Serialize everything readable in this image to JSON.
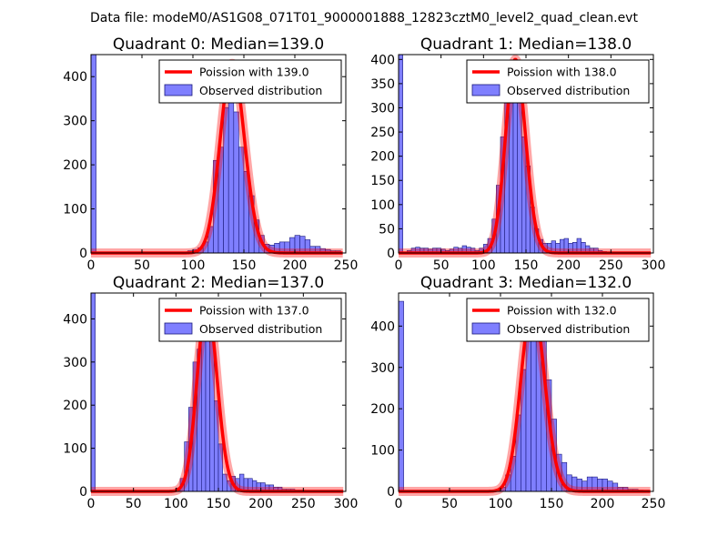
{
  "suptitle": "Data file: modeM0/AS1G08_071T01_9000001888_12823cztM0_level2_quad_clean.evt",
  "colors": {
    "bar_fill": "#7f7fff",
    "line": "#ff0000"
  },
  "chart_data": [
    {
      "type": "bar",
      "title": "Quadrant 0: Median=139.0",
      "xlim": [
        0,
        250
      ],
      "ylim": [
        0,
        450
      ],
      "xticks": [
        0,
        50,
        100,
        150,
        200,
        250
      ],
      "yticks": [
        0,
        100,
        200,
        300,
        400
      ],
      "legend": {
        "placement": "top-right",
        "line_label": "Poission with 139.0",
        "bar_label": "Observed distribution"
      },
      "poisson_mean": 139.0,
      "peak": 430,
      "bin_width": 5,
      "bins_left": [
        0,
        5,
        10,
        15,
        20,
        25,
        30,
        35,
        40,
        45,
        50,
        55,
        60,
        65,
        70,
        75,
        80,
        85,
        90,
        95,
        100,
        105,
        110,
        115,
        120,
        125,
        130,
        135,
        140,
        145,
        150,
        155,
        160,
        165,
        170,
        175,
        180,
        185,
        190,
        195,
        200,
        205,
        210,
        215,
        220,
        225,
        230,
        235,
        240
      ],
      "counts": [
        450,
        0,
        0,
        0,
        0,
        0,
        0,
        0,
        0,
        0,
        0,
        0,
        0,
        0,
        0,
        0,
        0,
        0,
        0,
        5,
        8,
        12,
        25,
        60,
        210,
        240,
        330,
        350,
        320,
        240,
        185,
        130,
        75,
        40,
        20,
        18,
        22,
        25,
        25,
        35,
        40,
        38,
        30,
        15,
        15,
        10,
        8,
        5,
        5
      ]
    },
    {
      "type": "bar",
      "title": "Quadrant 1: Median=138.0",
      "xlim": [
        0,
        300
      ],
      "ylim": [
        0,
        410
      ],
      "xticks": [
        0,
        50,
        100,
        150,
        200,
        250,
        300
      ],
      "yticks": [
        0,
        50,
        100,
        150,
        200,
        250,
        300,
        350,
        400
      ],
      "legend": {
        "placement": "top-right",
        "line_label": "Poission with 138.0",
        "bar_label": "Observed distribution"
      },
      "poisson_mean": 138.0,
      "peak": 400,
      "bin_width": 5,
      "bins_left": [
        0,
        5,
        10,
        15,
        20,
        25,
        30,
        35,
        40,
        45,
        50,
        55,
        60,
        65,
        70,
        75,
        80,
        85,
        90,
        95,
        100,
        105,
        110,
        115,
        120,
        125,
        130,
        135,
        140,
        145,
        150,
        155,
        160,
        165,
        170,
        175,
        180,
        185,
        190,
        195,
        200,
        205,
        210,
        215,
        220,
        225,
        230,
        235,
        240,
        245
      ],
      "counts": [
        410,
        0,
        5,
        10,
        12,
        10,
        10,
        8,
        10,
        10,
        8,
        5,
        8,
        12,
        10,
        15,
        12,
        10,
        5,
        10,
        18,
        30,
        70,
        140,
        240,
        320,
        380,
        370,
        310,
        240,
        180,
        95,
        50,
        28,
        20,
        20,
        25,
        20,
        28,
        30,
        20,
        22,
        30,
        22,
        15,
        10,
        10,
        5,
        3,
        2
      ]
    },
    {
      "type": "bar",
      "title": "Quadrant 2: Median=137.0",
      "xlim": [
        0,
        300
      ],
      "ylim": [
        0,
        460
      ],
      "xticks": [
        0,
        50,
        100,
        150,
        200,
        250,
        300
      ],
      "yticks": [
        0,
        100,
        200,
        300,
        400
      ],
      "legend": {
        "placement": "top-right",
        "line_label": "Poission with 137.0",
        "bar_label": "Observed distribution"
      },
      "poisson_mean": 137.0,
      "peak": 435,
      "bin_width": 5,
      "bins_left": [
        0,
        5,
        10,
        15,
        20,
        25,
        30,
        35,
        40,
        45,
        50,
        55,
        60,
        65,
        70,
        75,
        80,
        85,
        90,
        95,
        100,
        105,
        110,
        115,
        120,
        125,
        130,
        135,
        140,
        145,
        150,
        155,
        160,
        165,
        170,
        175,
        180,
        185,
        190,
        195,
        200,
        205,
        210,
        215,
        220,
        225,
        230,
        235,
        240,
        245,
        250
      ],
      "counts": [
        460,
        0,
        0,
        0,
        0,
        0,
        0,
        0,
        0,
        0,
        0,
        0,
        0,
        0,
        0,
        0,
        0,
        0,
        0,
        3,
        8,
        30,
        115,
        195,
        300,
        330,
        430,
        410,
        360,
        210,
        110,
        40,
        25,
        35,
        30,
        40,
        30,
        30,
        25,
        20,
        20,
        15,
        15,
        10,
        10,
        5,
        5,
        5,
        3,
        3,
        2
      ]
    },
    {
      "type": "bar",
      "title": "Quadrant 3: Median=132.0",
      "xlim": [
        0,
        250
      ],
      "ylim": [
        0,
        480
      ],
      "xticks": [
        0,
        50,
        100,
        150,
        200,
        250
      ],
      "yticks": [
        0,
        100,
        200,
        300,
        400
      ],
      "legend": {
        "placement": "top-right",
        "line_label": "Poission with 132.0",
        "bar_label": "Observed distribution"
      },
      "poisson_mean": 132.0,
      "peak": 455,
      "bin_width": 5,
      "bins_left": [
        0,
        5,
        10,
        15,
        20,
        25,
        30,
        35,
        40,
        45,
        50,
        55,
        60,
        65,
        70,
        75,
        80,
        85,
        90,
        95,
        100,
        105,
        110,
        115,
        120,
        125,
        130,
        135,
        140,
        145,
        150,
        155,
        160,
        165,
        170,
        175,
        180,
        185,
        190,
        195,
        200,
        205,
        210,
        215,
        220,
        225,
        230,
        235
      ],
      "counts": [
        460,
        0,
        0,
        0,
        0,
        0,
        0,
        0,
        0,
        0,
        0,
        0,
        0,
        0,
        0,
        0,
        0,
        0,
        0,
        5,
        10,
        40,
        85,
        185,
        295,
        380,
        450,
        410,
        380,
        270,
        175,
        90,
        70,
        40,
        35,
        30,
        25,
        35,
        35,
        30,
        30,
        25,
        20,
        10,
        10,
        5,
        5,
        3
      ]
    }
  ]
}
